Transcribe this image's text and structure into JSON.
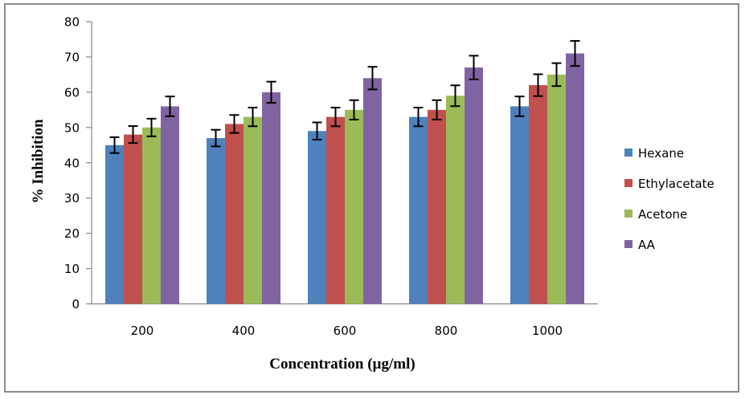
{
  "chart_data": {
    "type": "bar",
    "title": "",
    "xlabel": "Concentration (µg/ml)",
    "ylabel": "% Inhibition",
    "categories": [
      "200",
      "400",
      "600",
      "800",
      "1000"
    ],
    "ylim": [
      0,
      80
    ],
    "yticks": [
      0,
      10,
      20,
      30,
      40,
      50,
      60,
      70,
      80
    ],
    "grid": false,
    "legend_position": "right",
    "error_bars": "5% of value",
    "series": [
      {
        "name": "Hexane",
        "color": "#4F81BD",
        "values": [
          45,
          47,
          49,
          53,
          56
        ]
      },
      {
        "name": "Ethylacetate",
        "color": "#C0504D",
        "values": [
          48,
          51,
          53,
          55,
          62
        ]
      },
      {
        "name": "Acetone",
        "color": "#9BBB59",
        "values": [
          50,
          53,
          55,
          59,
          65
        ]
      },
      {
        "name": "AA",
        "color": "#8064A2",
        "values": [
          56,
          60,
          64,
          67,
          71
        ]
      }
    ]
  }
}
